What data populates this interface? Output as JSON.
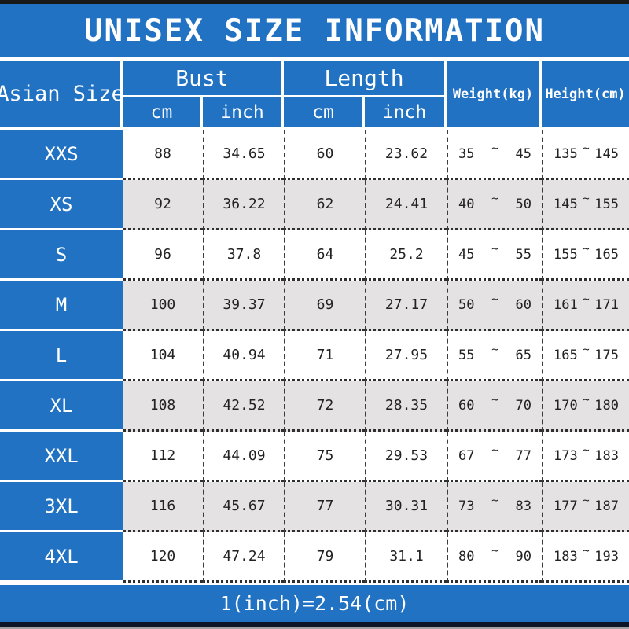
{
  "title": "UNISEX SIZE INFORMATION",
  "header": {
    "asian_size": "Asian Size",
    "bust": "Bust",
    "length": "Length",
    "bust_cm": "cm",
    "bust_inch": "inch",
    "length_cm": "cm",
    "length_inch": "inch",
    "weight": "Weight(kg)",
    "height": "Height(cm)"
  },
  "tilde": "~",
  "rows": [
    {
      "size": "XXS",
      "bust_cm": "88",
      "bust_inch": "34.65",
      "length_cm": "60",
      "length_inch": "23.62",
      "weight_min": "35",
      "weight_max": "45",
      "height_min": "135",
      "height_max": "145"
    },
    {
      "size": "XS",
      "bust_cm": "92",
      "bust_inch": "36.22",
      "length_cm": "62",
      "length_inch": "24.41",
      "weight_min": "40",
      "weight_max": "50",
      "height_min": "145",
      "height_max": "155"
    },
    {
      "size": "S",
      "bust_cm": "96",
      "bust_inch": "37.8",
      "length_cm": "64",
      "length_inch": "25.2",
      "weight_min": "45",
      "weight_max": "55",
      "height_min": "155",
      "height_max": "165"
    },
    {
      "size": "M",
      "bust_cm": "100",
      "bust_inch": "39.37",
      "length_cm": "69",
      "length_inch": "27.17",
      "weight_min": "50",
      "weight_max": "60",
      "height_min": "161",
      "height_max": "171"
    },
    {
      "size": "L",
      "bust_cm": "104",
      "bust_inch": "40.94",
      "length_cm": "71",
      "length_inch": "27.95",
      "weight_min": "55",
      "weight_max": "65",
      "height_min": "165",
      "height_max": "175"
    },
    {
      "size": "XL",
      "bust_cm": "108",
      "bust_inch": "42.52",
      "length_cm": "72",
      "length_inch": "28.35",
      "weight_min": "60",
      "weight_max": "70",
      "height_min": "170",
      "height_max": "180"
    },
    {
      "size": "XXL",
      "bust_cm": "112",
      "bust_inch": "44.09",
      "length_cm": "75",
      "length_inch": "29.53",
      "weight_min": "67",
      "weight_max": "77",
      "height_min": "173",
      "height_max": "183"
    },
    {
      "size": "3XL",
      "bust_cm": "116",
      "bust_inch": "45.67",
      "length_cm": "77",
      "length_inch": "30.31",
      "weight_min": "73",
      "weight_max": "83",
      "height_min": "177",
      "height_max": "187"
    },
    {
      "size": "4XL",
      "bust_cm": "120",
      "bust_inch": "47.24",
      "length_cm": "79",
      "length_inch": "31.1",
      "weight_min": "80",
      "weight_max": "90",
      "height_min": "183",
      "height_max": "193"
    }
  ],
  "footer_note": "1(inch)=2.54(cm)",
  "colors": {
    "blue": "#2272c3",
    "alt_row_gray": "#e4e2e3",
    "text_dark": "#222222",
    "white": "#ffffff"
  }
}
